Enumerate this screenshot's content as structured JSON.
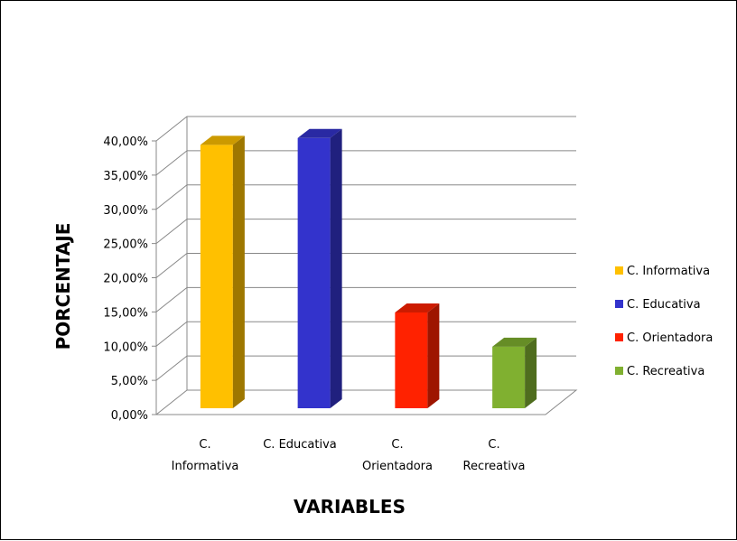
{
  "chart_data": {
    "type": "bar",
    "title": "",
    "xlabel": "VARIABLES",
    "ylabel": "PORCENTAJE",
    "categories": [
      [
        "C.",
        "Informativa"
      ],
      [
        "C. Educativa"
      ],
      [
        "C.",
        "Orientadora"
      ],
      [
        "C.",
        "Recreativa"
      ]
    ],
    "values": [
      0.385,
      0.395,
      0.14,
      0.09
    ],
    "colors": [
      "#FFC000",
      "#3333CC",
      "#FF2200",
      "#80B030"
    ],
    "y_ticks": [
      "0,00%",
      "5,00%",
      "10,00%",
      "15,00%",
      "20,00%",
      "25,00%",
      "30,00%",
      "35,00%",
      "40,00%"
    ],
    "ylim": [
      0,
      0.4
    ],
    "grid": true,
    "legend": {
      "position": "right",
      "entries": [
        "C. Informativa",
        "C. Educativa",
        "C. Orientadora",
        "C. Recreativa"
      ]
    }
  }
}
